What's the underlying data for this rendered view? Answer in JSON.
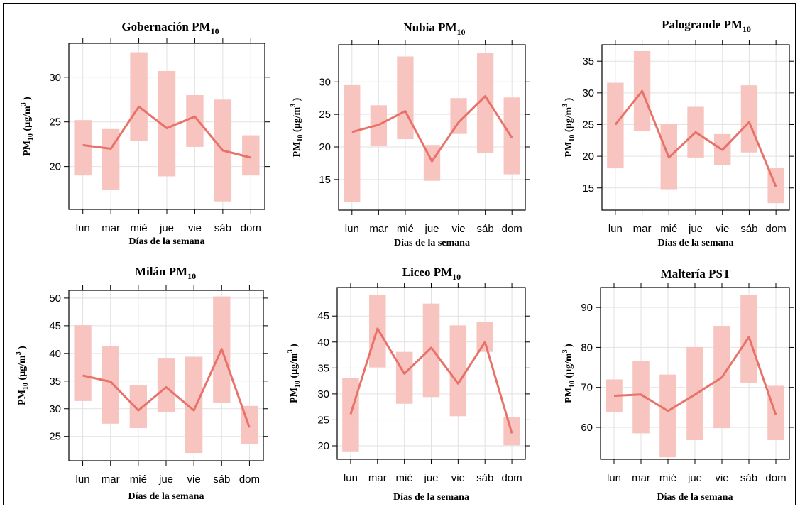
{
  "chart_data": [
    {
      "type": "line",
      "title": "Gobernación PM",
      "title_sub": "10",
      "ylabel": "PM",
      "ylabel_sub": "10",
      "ylabel_unit": " (µg/m",
      "ylabel_sup": "3",
      "ylabel_close": " )",
      "xlabel": "Días de la semana",
      "categories": [
        "lun",
        "mar",
        "mié",
        "jue",
        "vie",
        "sáb",
        "dom"
      ],
      "y_ticks": [
        20,
        25,
        30
      ],
      "ylim": [
        15.2,
        33.8
      ],
      "values": [
        22.4,
        22.0,
        26.7,
        24.3,
        25.6,
        21.8,
        21.0
      ],
      "lower": [
        19.0,
        17.4,
        22.9,
        18.9,
        22.2,
        16.1,
        19.0
      ],
      "upper": [
        25.2,
        24.2,
        32.8,
        30.7,
        28.0,
        27.5,
        23.5
      ],
      "line_color": "#e8726a",
      "band_color": "#f7c4bf"
    },
    {
      "type": "line",
      "title": "Nubia PM",
      "title_sub": "10",
      "ylabel": "PM",
      "ylabel_sub": "10",
      "ylabel_unit": " (µg/m",
      "ylabel_sup": "3",
      "ylabel_close": " )",
      "xlabel": "Días de la semana",
      "categories": [
        "lun",
        "mar",
        "mié",
        "jue",
        "vie",
        "sáb",
        "dom"
      ],
      "y_ticks": [
        15,
        20,
        25,
        30
      ],
      "ylim": [
        10.3,
        35.7
      ],
      "values": [
        22.3,
        23.4,
        25.5,
        17.8,
        23.8,
        27.8,
        21.4
      ],
      "lower": [
        11.5,
        20.1,
        21.2,
        14.8,
        22.0,
        19.1,
        15.8
      ],
      "upper": [
        29.5,
        26.4,
        33.9,
        20.3,
        27.5,
        34.4,
        27.6
      ],
      "line_color": "#e8726a",
      "band_color": "#f7c4bf"
    },
    {
      "type": "line",
      "title": "Palogrande PM",
      "title_sub": "10",
      "ylabel": "PM",
      "ylabel_sub": "10",
      "ylabel_unit": " (µg/m",
      "ylabel_sup": "3",
      "ylabel_close": " )",
      "xlabel": "Días de la semana",
      "categories": [
        "lun",
        "mar",
        "mié",
        "jue",
        "vie",
        "sáb",
        "dom"
      ],
      "y_ticks": [
        15,
        20,
        25,
        30,
        35
      ],
      "ylim": [
        11.5,
        37.6
      ],
      "values": [
        25.0,
        30.3,
        19.8,
        23.8,
        21.0,
        25.4,
        15.2
      ],
      "lower": [
        18.1,
        24.0,
        14.8,
        19.8,
        18.6,
        20.6,
        12.6
      ],
      "upper": [
        31.6,
        36.6,
        25.1,
        27.8,
        23.5,
        31.2,
        18.2
      ],
      "line_color": "#e8726a",
      "band_color": "#f7c4bf"
    },
    {
      "type": "line",
      "title": "Milán PM",
      "title_sub": "10",
      "ylabel": "PM",
      "ylabel_sub": "10",
      "ylabel_unit": " (µg/m",
      "ylabel_sup": "3",
      "ylabel_close": " )",
      "xlabel": "Días de la semana",
      "categories": [
        "lun",
        "mar",
        "mié",
        "jue",
        "vie",
        "sáb",
        "dom"
      ],
      "y_ticks": [
        25,
        30,
        35,
        40,
        45,
        50
      ],
      "ylim": [
        20.6,
        51.4
      ],
      "values": [
        36.0,
        34.9,
        29.7,
        33.9,
        29.7,
        40.8,
        26.6
      ],
      "lower": [
        31.4,
        27.3,
        26.5,
        29.4,
        22.0,
        31.1,
        23.6
      ],
      "upper": [
        45.1,
        41.3,
        34.3,
        39.2,
        39.4,
        50.3,
        30.5
      ],
      "line_color": "#e8726a",
      "band_color": "#f7c4bf"
    },
    {
      "type": "line",
      "title": "Liceo PM",
      "title_sub": "10",
      "ylabel": "PM",
      "ylabel_sub": "10",
      "ylabel_unit": " (µg/m",
      "ylabel_sup": "3",
      "ylabel_close": " )",
      "xlabel": "Días de la semana",
      "categories": [
        "lun",
        "mar",
        "mié",
        "jue",
        "vie",
        "sáb",
        "dom"
      ],
      "y_ticks": [
        20,
        25,
        30,
        35,
        40,
        45
      ],
      "ylim": [
        17.4,
        50.5
      ],
      "values": [
        26.1,
        42.6,
        33.9,
        38.9,
        32.0,
        40.0,
        22.4
      ],
      "lower": [
        18.8,
        35.1,
        28.1,
        29.4,
        25.7,
        38.1,
        20.1
      ],
      "upper": [
        33.1,
        49.1,
        38.1,
        47.4,
        43.2,
        43.9,
        25.6
      ],
      "line_color": "#e8726a",
      "band_color": "#f7c4bf"
    },
    {
      "type": "line",
      "title": "Maltería PST",
      "title_sub": "",
      "ylabel": "PM",
      "ylabel_sub": "10",
      "ylabel_unit": " (µg/m",
      "ylabel_sup": "3",
      "ylabel_close": " )",
      "xlabel": "Días de la semana",
      "categories": [
        "lun",
        "mar",
        "mié",
        "jue",
        "vie",
        "sáb",
        "dom"
      ],
      "y_ticks": [
        60,
        70,
        80,
        90
      ],
      "ylim": [
        52.0,
        95.0
      ],
      "values": [
        67.9,
        68.2,
        64.1,
        68.2,
        72.5,
        82.6,
        63.1
      ],
      "lower": [
        63.9,
        58.5,
        52.5,
        56.8,
        59.8,
        71.2,
        56.8
      ],
      "upper": [
        72.0,
        76.7,
        73.2,
        80.1,
        85.4,
        93.1,
        70.4
      ],
      "line_color": "#e8726a",
      "band_color": "#f7c4bf"
    }
  ]
}
